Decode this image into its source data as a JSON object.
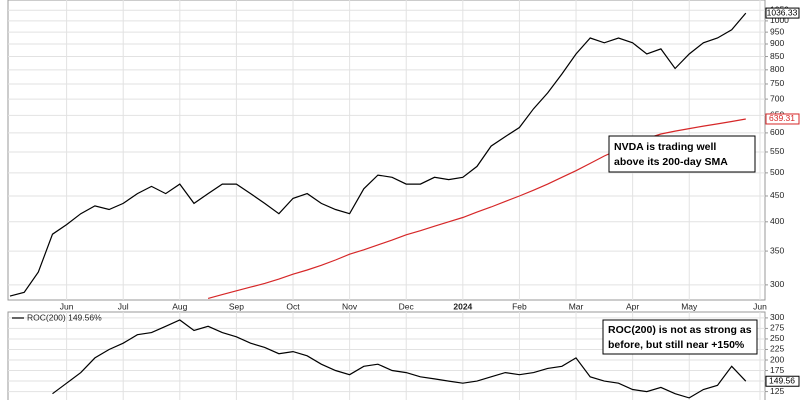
{
  "chart_data": [
    {
      "type": "line",
      "log_scale": true,
      "grid": true,
      "categories": [
        null,
        null,
        null,
        null,
        "Jun",
        null,
        null,
        null,
        "Jul",
        null,
        null,
        null,
        "Aug",
        null,
        null,
        null,
        "Sep",
        null,
        null,
        null,
        "Oct",
        null,
        null,
        null,
        "Nov",
        null,
        null,
        null,
        "Dec",
        null,
        null,
        null,
        "2024",
        null,
        null,
        null,
        "Feb",
        null,
        null,
        null,
        "Mar",
        null,
        null,
        null,
        "Apr",
        null,
        null,
        null,
        "May",
        null,
        null,
        null,
        null,
        "Jun"
      ],
      "series": [
        {
          "color": "#000000",
          "values": [
            285,
            290,
            318,
            378,
            395,
            415,
            430,
            423,
            435,
            455,
            470,
            455,
            475,
            435,
            455,
            475,
            475,
            455,
            435,
            415,
            445,
            455,
            435,
            423,
            415,
            465,
            495,
            490,
            475,
            475,
            490,
            485,
            490,
            515,
            565,
            590,
            615,
            670,
            720,
            785,
            860,
            925,
            905,
            925,
            905,
            860,
            880,
            805,
            860,
            905,
            925,
            960,
            1036.33,
            null
          ]
        },
        {
          "color": "#d62728",
          "values": [
            null,
            null,
            null,
            null,
            null,
            null,
            null,
            null,
            null,
            null,
            null,
            null,
            null,
            null,
            282,
            287,
            292,
            297,
            302,
            308,
            315,
            321,
            328,
            336,
            345,
            352,
            360,
            368,
            377,
            384,
            392,
            400,
            408,
            418,
            428,
            439,
            450,
            462,
            475,
            490,
            505,
            522,
            540,
            556,
            572,
            585,
            597,
            605,
            612,
            619,
            625,
            632,
            639.31,
            null
          ]
        }
      ],
      "ylim": [
        280,
        1100
      ],
      "yticks": [
        300,
        350,
        400,
        450,
        500,
        550,
        600,
        650,
        700,
        750,
        800,
        850,
        900,
        950,
        1000,
        1050
      ],
      "annotation": [
        "NVDA is trading well",
        "above its 200-day SMA"
      ]
    },
    {
      "type": "line",
      "grid": true,
      "series": [
        {
          "name": "ROC(200) 149.56%",
          "color": "#000000",
          "values": [
            null,
            null,
            null,
            120,
            145,
            170,
            205,
            225,
            240,
            260,
            265,
            280,
            295,
            270,
            280,
            265,
            255,
            240,
            230,
            215,
            220,
            210,
            190,
            175,
            165,
            185,
            190,
            175,
            170,
            160,
            155,
            150,
            145,
            150,
            160,
            170,
            165,
            170,
            180,
            185,
            205,
            160,
            150,
            145,
            130,
            125,
            135,
            120,
            110,
            130,
            140,
            185,
            149.56,
            null
          ]
        }
      ],
      "ylim": [
        105,
        314
      ],
      "yticks": [
        125,
        150,
        175,
        200,
        225,
        250,
        275,
        300
      ],
      "annotation": [
        "ROC(200) is not as strong as",
        "before, but still near +150%"
      ]
    }
  ]
}
